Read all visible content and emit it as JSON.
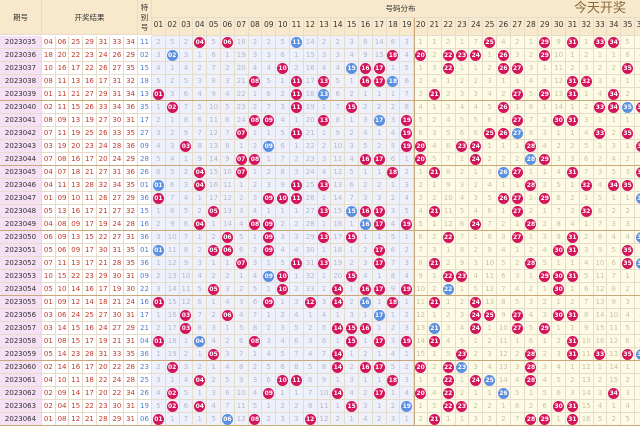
{
  "headers": {
    "issue": "期号",
    "result": "开奖结果",
    "special": "特别号",
    "distribution": "号码分布"
  },
  "numbers": [
    "01",
    "02",
    "03",
    "04",
    "05",
    "06",
    "07",
    "08",
    "09",
    "10",
    "11",
    "12",
    "13",
    "14",
    "15",
    "16",
    "17",
    "18",
    "19",
    "20",
    "21",
    "22",
    "23",
    "24",
    "25",
    "26",
    "27",
    "28",
    "29",
    "30",
    "31",
    "32",
    "33",
    "34",
    "35",
    "36"
  ],
  "initial_omission": [
    2,
    5,
    2,
    null,
    5,
    null,
    18,
    2,
    2,
    5,
    null,
    14,
    2,
    2,
    3,
    8,
    14,
    6,
    3,
    1,
    1,
    2,
    1,
    7,
    null,
    4,
    2,
    1,
    null,
    9,
    null,
    1,
    null,
    null,
    5,
    3
  ],
  "colors": {
    "red_ball": "#d4145a",
    "blue_ball": "#5b8fe0",
    "header_bg": "#f8e8cc",
    "issue_bg": "#f6e0f4"
  },
  "rows": [
    {
      "issue": "2023035",
      "reds": [
        "04",
        "06",
        "25",
        "29",
        "31",
        "33",
        "34"
      ],
      "special": "11"
    },
    {
      "issue": "2023036",
      "reds": [
        "18",
        "20",
        "22",
        "23",
        "24",
        "26",
        "29"
      ],
      "special": "02"
    },
    {
      "issue": "2023037",
      "reds": [
        "10",
        "16",
        "17",
        "22",
        "26",
        "27",
        "35"
      ],
      "special": "15"
    },
    {
      "issue": "2023038",
      "reds": [
        "08",
        "11",
        "13",
        "16",
        "17",
        "31",
        "32"
      ],
      "special": "18"
    },
    {
      "issue": "2023039",
      "reds": [
        "01",
        "11",
        "21",
        "27",
        "29",
        "31",
        "34"
      ],
      "special": "13"
    },
    {
      "issue": "2023040",
      "reds": [
        "02",
        "11",
        "15",
        "26",
        "33",
        "34",
        "36"
      ],
      "special": "35"
    },
    {
      "issue": "2023041",
      "reds": [
        "08",
        "09",
        "13",
        "19",
        "27",
        "30",
        "31"
      ],
      "special": "17"
    },
    {
      "issue": "2023042",
      "reds": [
        "07",
        "11",
        "19",
        "25",
        "26",
        "33",
        "35"
      ],
      "special": "27"
    },
    {
      "issue": "2023043",
      "reds": [
        "03",
        "19",
        "20",
        "23",
        "24",
        "28",
        "36"
      ],
      "special": "09"
    },
    {
      "issue": "2023044",
      "reds": [
        "07",
        "08",
        "16",
        "17",
        "20",
        "24",
        "29"
      ],
      "special": "28"
    },
    {
      "issue": "2023045",
      "reds": [
        "04",
        "07",
        "18",
        "21",
        "27",
        "31",
        "36"
      ],
      "special": "26"
    },
    {
      "issue": "2023046",
      "reds": [
        "04",
        "11",
        "13",
        "28",
        "32",
        "34",
        "35"
      ],
      "special": "01"
    },
    {
      "issue": "2023047",
      "reds": [
        "01",
        "09",
        "10",
        "11",
        "26",
        "27",
        "29"
      ],
      "special": "36"
    },
    {
      "issue": "2023048",
      "reds": [
        "05",
        "13",
        "16",
        "17",
        "21",
        "27",
        "32"
      ],
      "special": "15"
    },
    {
      "issue": "2023049",
      "reds": [
        "04",
        "08",
        "09",
        "17",
        "19",
        "24",
        "28"
      ],
      "special": "16"
    },
    {
      "issue": "2023050",
      "reds": [
        "06",
        "09",
        "13",
        "15",
        "22",
        "27",
        "31"
      ],
      "special": "36"
    },
    {
      "issue": "2023051",
      "reds": [
        "05",
        "06",
        "09",
        "17",
        "30",
        "31",
        "35"
      ],
      "special": "01"
    },
    {
      "issue": "2023052",
      "reds": [
        "07",
        "11",
        "13",
        "17",
        "21",
        "28",
        "35"
      ],
      "special": "36"
    },
    {
      "issue": "2023053",
      "reds": [
        "10",
        "15",
        "22",
        "23",
        "29",
        "30",
        "31"
      ],
      "special": "09"
    },
    {
      "issue": "2023054",
      "reds": [
        "05",
        "10",
        "14",
        "16",
        "17",
        "19",
        "30"
      ],
      "special": "22"
    },
    {
      "issue": "2023055",
      "reds": [
        "01",
        "09",
        "12",
        "14",
        "18",
        "21",
        "24"
      ],
      "special": "16"
    },
    {
      "issue": "2023056",
      "reds": [
        "03",
        "06",
        "24",
        "25",
        "27",
        "30",
        "31"
      ],
      "special": "17"
    },
    {
      "issue": "2023057",
      "reds": [
        "03",
        "14",
        "15",
        "16",
        "24",
        "27",
        "29"
      ],
      "special": "21"
    },
    {
      "issue": "2023058",
      "reds": [
        "01",
        "08",
        "15",
        "17",
        "19",
        "21",
        "31"
      ],
      "special": "04"
    },
    {
      "issue": "2023059",
      "reds": [
        "05",
        "14",
        "23",
        "28",
        "31",
        "33",
        "35"
      ],
      "special": "36"
    },
    {
      "issue": "2023060",
      "reds": [
        "02",
        "14",
        "16",
        "17",
        "20",
        "22",
        "28"
      ],
      "special": "23"
    },
    {
      "issue": "2023061",
      "reds": [
        "04",
        "10",
        "11",
        "18",
        "22",
        "24",
        "28"
      ],
      "special": "25"
    },
    {
      "issue": "2023062",
      "reds": [
        "02",
        "09",
        "14",
        "17",
        "20",
        "22",
        "34"
      ],
      "special": "26"
    },
    {
      "issue": "2023063",
      "reds": [
        "02",
        "04",
        "15",
        "22",
        "23",
        "30",
        "31"
      ],
      "special": "19"
    },
    {
      "issue": "2023064",
      "reds": [
        "01",
        "08",
        "12",
        "21",
        "28",
        "29",
        "31"
      ],
      "special": "06"
    }
  ],
  "watermark": "今天开奖"
}
